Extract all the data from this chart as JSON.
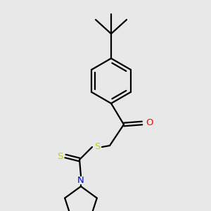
{
  "bg_color": "#e8e8e8",
  "bond_color": "#000000",
  "line_width": 1.6,
  "atom_colors": {
    "O": "#ff0000",
    "N": "#0000ff",
    "S": "#cccc00",
    "C": "#000000"
  },
  "font_size": 9.5,
  "fig_width": 3.0,
  "fig_height": 3.0,
  "dpi": 100
}
